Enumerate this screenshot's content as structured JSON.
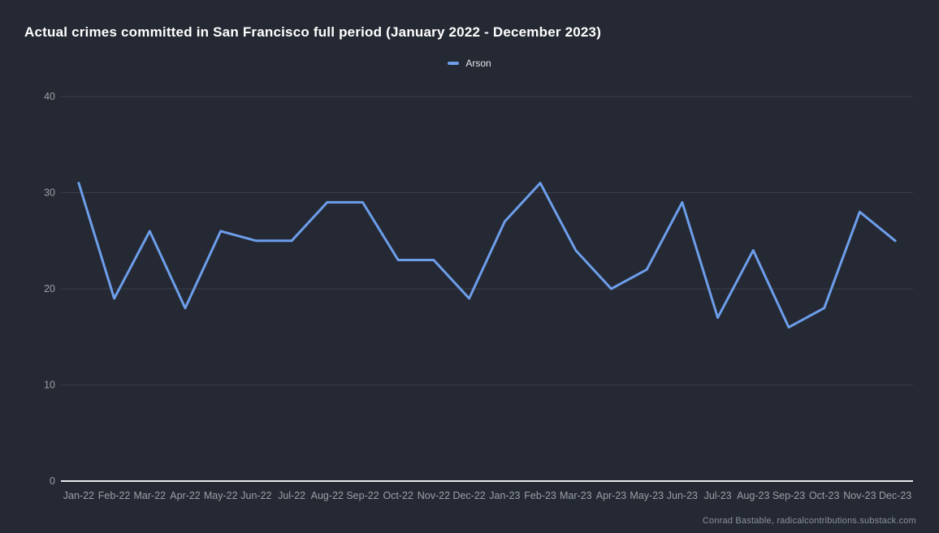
{
  "page": {
    "background_color": "#252933",
    "footer_credit": "Conrad Bastable, radicalcontributions.substack.com"
  },
  "header": {
    "title": "Actual crimes committed in San Francisco full period (January 2022 - December 2023)"
  },
  "legend": {
    "position": "top-center",
    "items": [
      {
        "label": "Arson",
        "color": "#6d9eeb"
      }
    ]
  },
  "chart_data": {
    "type": "line",
    "title": "Actual crimes committed in San Francisco full period (January 2022 - December 2023)",
    "categories": [
      "Jan-22",
      "Feb-22",
      "Mar-22",
      "Apr-22",
      "May-22",
      "Jun-22",
      "Jul-22",
      "Aug-22",
      "Sep-22",
      "Oct-22",
      "Nov-22",
      "Dec-22",
      "Jan-23",
      "Feb-23",
      "Mar-23",
      "Apr-23",
      "May-23",
      "Jun-23",
      "Jul-23",
      "Aug-23",
      "Sep-23",
      "Oct-23",
      "Nov-23",
      "Dec-23"
    ],
    "series": [
      {
        "name": "Arson",
        "color": "#6d9eeb",
        "values": [
          31,
          19,
          26,
          18,
          26,
          25,
          25,
          29,
          29,
          23,
          23,
          19,
          27,
          31,
          24,
          20,
          22,
          29,
          17,
          24,
          16,
          18,
          28,
          25
        ]
      }
    ],
    "xlabel": "",
    "ylabel": "",
    "ylim": [
      0,
      40
    ],
    "yticks": [
      0,
      10,
      20,
      30,
      40
    ],
    "grid": true,
    "legend_position": "top-center",
    "colors": {
      "background": "#252933",
      "gridline": "#3a3f48",
      "axis_line": "#e8eaed",
      "tick_label": "#9aa0a6",
      "title": "#ffffff",
      "legend_label": "#e3e6ea",
      "footer": "#8b929c"
    }
  }
}
